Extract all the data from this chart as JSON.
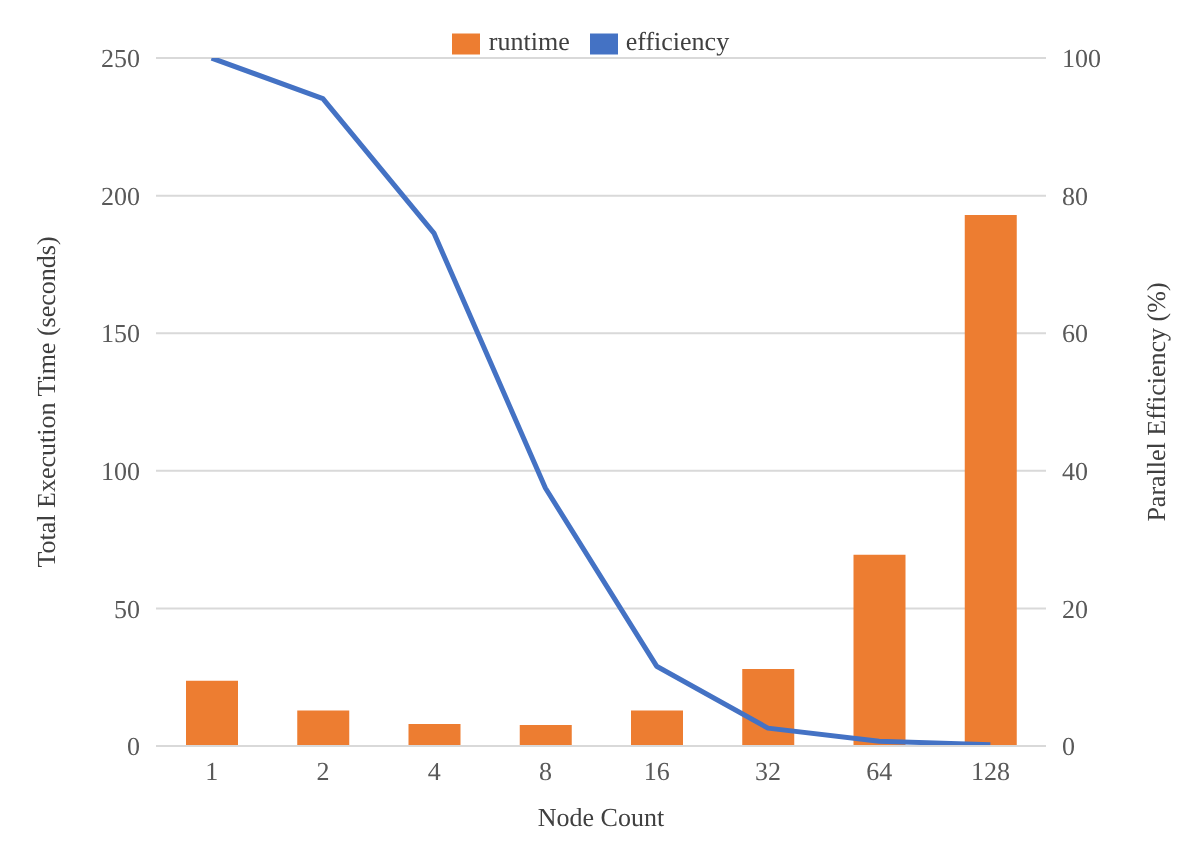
{
  "chart_data": {
    "type": "bar",
    "categories": [
      "1",
      "2",
      "4",
      "8",
      "16",
      "32",
      "64",
      "128"
    ],
    "series": [
      {
        "name": "runtime",
        "color": "#ed7d31",
        "values": [
          23.7,
          12.9,
          8,
          7.6,
          12.9,
          28,
          69.5,
          193
        ]
      },
      {
        "name": "efficiency",
        "type": "line",
        "axis": "y2",
        "color": "#4472c4",
        "values": [
          100,
          94.1,
          74.5,
          37.5,
          11.6,
          2.6,
          0.7,
          0.2
        ]
      }
    ],
    "xlabel": "Node Count",
    "ylabel": "Total Execution Time (seconds)",
    "y2label": "Parallel Efficiency (%)",
    "ylim": [
      0,
      250
    ],
    "yticks": [
      0,
      50,
      100,
      150,
      200,
      250
    ],
    "y2lim": [
      0,
      100
    ],
    "y2ticks": [
      0,
      20,
      40,
      60,
      80,
      100
    ],
    "grid": "y",
    "legend": "top",
    "marker": "none"
  }
}
